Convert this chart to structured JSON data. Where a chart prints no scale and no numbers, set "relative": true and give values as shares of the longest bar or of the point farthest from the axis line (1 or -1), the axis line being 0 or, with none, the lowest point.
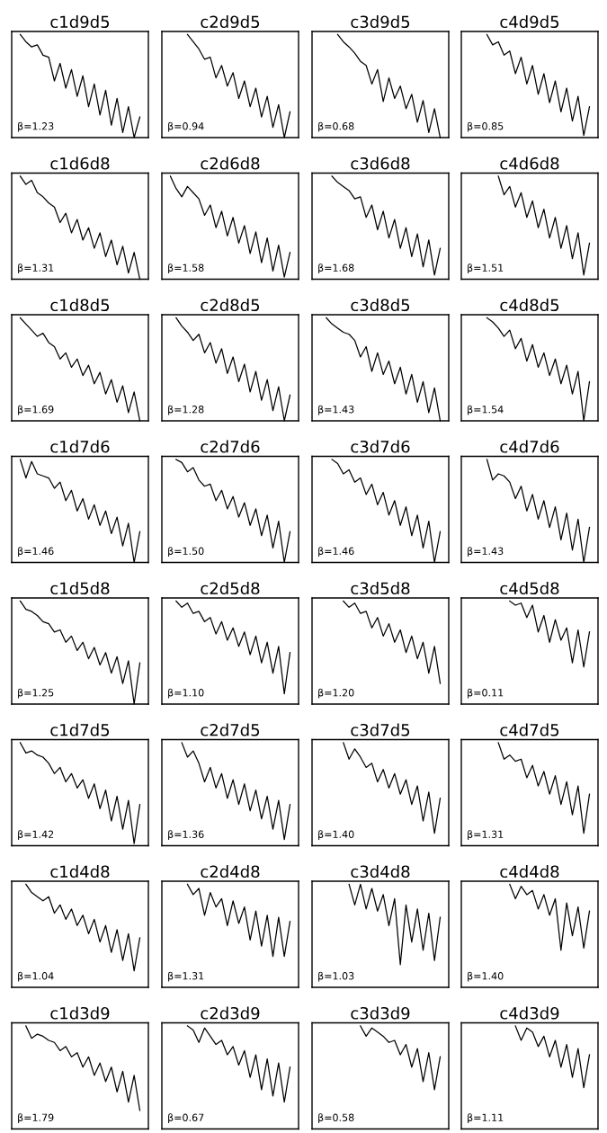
{
  "chart_data": [
    {
      "type": "line",
      "title": "c1d9d5",
      "annotations": [
        "β=1.23"
      ],
      "relative": true,
      "color": "#000000",
      "categories": [
        null,
        null,
        null,
        null,
        null,
        null,
        null,
        null,
        null,
        null,
        null,
        null,
        null,
        null,
        null,
        null,
        null,
        null,
        null,
        null,
        null,
        null,
        null,
        null
      ],
      "values": [
        null,
        1.0,
        0.93,
        0.88,
        0.9,
        0.8,
        0.78,
        0.55,
        0.72,
        0.48,
        0.66,
        0.4,
        0.6,
        0.3,
        0.52,
        0.22,
        0.46,
        0.12,
        0.38,
        0.05,
        0.3,
        0.0,
        0.2,
        null
      ]
    },
    {
      "type": "line",
      "title": "c2d9d5",
      "annotations": [
        "β=0.94"
      ],
      "relative": true,
      "color": "#000000",
      "categories": [
        null,
        null,
        null,
        null,
        null,
        null,
        null,
        null,
        null,
        null,
        null,
        null,
        null,
        null,
        null,
        null,
        null,
        null,
        null,
        null,
        null,
        null,
        null,
        null
      ],
      "values": [
        null,
        null,
        null,
        null,
        1.0,
        0.93,
        0.86,
        0.76,
        0.78,
        0.58,
        0.7,
        0.5,
        0.63,
        0.38,
        0.55,
        0.3,
        0.48,
        0.2,
        0.4,
        0.1,
        0.32,
        0.0,
        0.25,
        null
      ]
    },
    {
      "type": "line",
      "title": "c3d9d5",
      "annotations": [
        "β=0.68"
      ],
      "relative": true,
      "color": "#000000",
      "categories": [
        null,
        null,
        null,
        null,
        null,
        null,
        null,
        null,
        null,
        null,
        null,
        null,
        null,
        null,
        null,
        null,
        null,
        null,
        null,
        null,
        null,
        null,
        null,
        null
      ],
      "values": [
        null,
        null,
        null,
        null,
        1.0,
        0.93,
        0.88,
        0.82,
        0.74,
        0.7,
        0.52,
        0.66,
        0.35,
        0.58,
        0.38,
        0.5,
        0.28,
        0.42,
        0.15,
        0.36,
        0.05,
        0.28,
        0.0,
        null
      ]
    },
    {
      "type": "line",
      "title": "c4d9d5",
      "annotations": [
        "β=0.85"
      ],
      "relative": true,
      "color": "#000000",
      "categories": [
        null,
        null,
        null,
        null,
        null,
        null,
        null,
        null,
        null,
        null,
        null,
        null,
        null,
        null,
        null,
        null,
        null,
        null,
        null,
        null,
        null,
        null,
        null,
        null
      ],
      "values": [
        null,
        null,
        null,
        null,
        1.0,
        0.9,
        0.93,
        0.8,
        0.84,
        0.62,
        0.78,
        0.52,
        0.7,
        0.42,
        0.62,
        0.34,
        0.55,
        0.25,
        0.48,
        0.16,
        0.4,
        0.02,
        0.3,
        null
      ]
    },
    {
      "type": "line",
      "title": "c1d6d8",
      "annotations": [
        "β=1.31"
      ],
      "relative": true,
      "color": "#000000",
      "categories": [
        null,
        null,
        null,
        null,
        null,
        null,
        null,
        null,
        null,
        null,
        null,
        null,
        null,
        null,
        null,
        null,
        null,
        null,
        null,
        null,
        null,
        null,
        null,
        null
      ],
      "values": [
        null,
        1.0,
        0.92,
        0.96,
        0.84,
        0.8,
        0.74,
        0.7,
        0.55,
        0.64,
        0.45,
        0.58,
        0.38,
        0.5,
        0.3,
        0.45,
        0.22,
        0.38,
        0.14,
        0.32,
        0.06,
        0.26,
        0.0,
        null
      ]
    },
    {
      "type": "line",
      "title": "c2d6d8",
      "annotations": [
        "β=1.58"
      ],
      "relative": true,
      "color": "#000000",
      "categories": [
        null,
        null,
        null,
        null,
        null,
        null,
        null,
        null,
        null,
        null,
        null,
        null,
        null,
        null,
        null,
        null,
        null,
        null,
        null,
        null,
        null,
        null,
        null,
        null
      ],
      "values": [
        null,
        1.0,
        0.88,
        0.8,
        0.9,
        0.84,
        0.78,
        0.62,
        0.72,
        0.5,
        0.66,
        0.42,
        0.6,
        0.35,
        0.52,
        0.25,
        0.46,
        0.16,
        0.4,
        0.08,
        0.33,
        0.02,
        0.26,
        null
      ]
    },
    {
      "type": "line",
      "title": "c3d6d8",
      "annotations": [
        "β=1.68"
      ],
      "relative": true,
      "color": "#000000",
      "categories": [
        null,
        null,
        null,
        null,
        null,
        null,
        null,
        null,
        null,
        null,
        null,
        null,
        null,
        null,
        null,
        null,
        null,
        null,
        null,
        null,
        null,
        null,
        null,
        null
      ],
      "values": [
        null,
        null,
        null,
        1.0,
        0.94,
        0.9,
        0.86,
        0.78,
        0.8,
        0.6,
        0.72,
        0.48,
        0.66,
        0.4,
        0.58,
        0.3,
        0.5,
        0.22,
        0.44,
        0.12,
        0.38,
        0.04,
        0.3,
        null
      ]
    },
    {
      "type": "line",
      "title": "c4d6d8",
      "annotations": [
        "β=1.51"
      ],
      "relative": true,
      "color": "#000000",
      "categories": [
        null,
        null,
        null,
        null,
        null,
        null,
        null,
        null,
        null,
        null,
        null,
        null,
        null,
        null,
        null,
        null,
        null,
        null,
        null,
        null,
        null,
        null,
        null,
        null
      ],
      "values": [
        null,
        null,
        null,
        null,
        null,
        null,
        1.0,
        0.82,
        0.9,
        0.7,
        0.84,
        0.6,
        0.76,
        0.5,
        0.68,
        0.4,
        0.6,
        0.3,
        0.52,
        0.2,
        0.45,
        0.04,
        0.35,
        null
      ]
    },
    {
      "type": "line",
      "title": "c1d8d5",
      "annotations": [
        "β=1.69"
      ],
      "relative": true,
      "color": "#000000",
      "categories": [
        null,
        null,
        null,
        null,
        null,
        null,
        null,
        null,
        null,
        null,
        null,
        null,
        null,
        null,
        null,
        null,
        null,
        null,
        null,
        null,
        null,
        null,
        null,
        null
      ],
      "values": [
        null,
        1.0,
        0.94,
        0.88,
        0.82,
        0.85,
        0.76,
        0.72,
        0.6,
        0.66,
        0.52,
        0.6,
        0.44,
        0.54,
        0.36,
        0.47,
        0.26,
        0.4,
        0.18,
        0.34,
        0.08,
        0.28,
        0.0,
        null
      ]
    },
    {
      "type": "line",
      "title": "c2d8d5",
      "annotations": [
        "β=1.28"
      ],
      "relative": true,
      "color": "#000000",
      "categories": [
        null,
        null,
        null,
        null,
        null,
        null,
        null,
        null,
        null,
        null,
        null,
        null,
        null,
        null,
        null,
        null,
        null,
        null,
        null,
        null,
        null,
        null,
        null,
        null
      ],
      "values": [
        null,
        null,
        1.0,
        0.92,
        0.86,
        0.78,
        0.84,
        0.66,
        0.76,
        0.56,
        0.7,
        0.46,
        0.62,
        0.38,
        0.55,
        0.28,
        0.48,
        0.2,
        0.4,
        0.1,
        0.33,
        0.0,
        0.25,
        null
      ]
    },
    {
      "type": "line",
      "title": "c3d8d5",
      "annotations": [
        "β=1.43"
      ],
      "relative": true,
      "color": "#000000",
      "categories": [
        null,
        null,
        null,
        null,
        null,
        null,
        null,
        null,
        null,
        null,
        null,
        null,
        null,
        null,
        null,
        null,
        null,
        null,
        null,
        null,
        null,
        null,
        null,
        null
      ],
      "values": [
        null,
        null,
        1.0,
        0.94,
        0.9,
        0.86,
        0.84,
        0.78,
        0.62,
        0.72,
        0.48,
        0.66,
        0.45,
        0.58,
        0.36,
        0.52,
        0.26,
        0.45,
        0.18,
        0.38,
        0.08,
        0.32,
        0.0,
        null
      ]
    },
    {
      "type": "line",
      "title": "c4d8d5",
      "annotations": [
        "β=1.54"
      ],
      "relative": true,
      "color": "#000000",
      "categories": [
        null,
        null,
        null,
        null,
        null,
        null,
        null,
        null,
        null,
        null,
        null,
        null,
        null,
        null,
        null,
        null,
        null,
        null,
        null,
        null,
        null,
        null,
        null,
        null
      ],
      "values": [
        null,
        null,
        null,
        null,
        1.0,
        0.96,
        0.9,
        0.82,
        0.88,
        0.7,
        0.8,
        0.58,
        0.74,
        0.52,
        0.66,
        0.44,
        0.6,
        0.36,
        0.54,
        0.26,
        0.48,
        0.0,
        0.38,
        null
      ]
    },
    {
      "type": "line",
      "title": "c1d7d6",
      "annotations": [
        "β=1.46"
      ],
      "relative": true,
      "color": "#000000",
      "categories": [
        null,
        null,
        null,
        null,
        null,
        null,
        null,
        null,
        null,
        null,
        null,
        null,
        null,
        null,
        null,
        null,
        null,
        null,
        null,
        null,
        null,
        null,
        null,
        null
      ],
      "values": [
        null,
        1.0,
        0.82,
        0.98,
        0.86,
        0.84,
        0.82,
        0.72,
        0.78,
        0.6,
        0.7,
        0.5,
        0.62,
        0.42,
        0.56,
        0.36,
        0.5,
        0.28,
        0.44,
        0.16,
        0.38,
        0.0,
        0.3,
        null
      ]
    },
    {
      "type": "line",
      "title": "c2d7d6",
      "annotations": [
        "β=1.50"
      ],
      "relative": true,
      "color": "#000000",
      "categories": [
        null,
        null,
        null,
        null,
        null,
        null,
        null,
        null,
        null,
        null,
        null,
        null,
        null,
        null,
        null,
        null,
        null,
        null,
        null,
        null,
        null,
        null,
        null,
        null
      ],
      "values": [
        null,
        null,
        1.0,
        0.97,
        0.88,
        0.92,
        0.8,
        0.74,
        0.76,
        0.6,
        0.7,
        0.52,
        0.64,
        0.44,
        0.58,
        0.36,
        0.52,
        0.26,
        0.46,
        0.14,
        0.4,
        0.0,
        0.3,
        null
      ]
    },
    {
      "type": "line",
      "title": "c3d7d6",
      "annotations": [
        "β=1.46"
      ],
      "relative": true,
      "color": "#000000",
      "categories": [
        null,
        null,
        null,
        null,
        null,
        null,
        null,
        null,
        null,
        null,
        null,
        null,
        null,
        null,
        null,
        null,
        null,
        null,
        null,
        null,
        null,
        null,
        null,
        null
      ],
      "values": [
        null,
        null,
        null,
        1.0,
        0.96,
        0.86,
        0.9,
        0.78,
        0.82,
        0.66,
        0.76,
        0.56,
        0.68,
        0.46,
        0.6,
        0.36,
        0.54,
        0.26,
        0.46,
        0.14,
        0.4,
        0.0,
        0.3,
        null
      ]
    },
    {
      "type": "line",
      "title": "c4d7d6",
      "annotations": [
        "β=1.43"
      ],
      "relative": true,
      "color": "#000000",
      "categories": [
        null,
        null,
        null,
        null,
        null,
        null,
        null,
        null,
        null,
        null,
        null,
        null,
        null,
        null,
        null,
        null,
        null,
        null,
        null,
        null,
        null,
        null,
        null,
        null
      ],
      "values": [
        null,
        null,
        null,
        null,
        1.0,
        0.8,
        0.86,
        0.84,
        0.78,
        0.62,
        0.74,
        0.5,
        0.66,
        0.42,
        0.6,
        0.34,
        0.54,
        0.22,
        0.48,
        0.12,
        0.42,
        0.0,
        0.34,
        null
      ]
    },
    {
      "type": "line",
      "title": "c1d5d8",
      "annotations": [
        "β=1.25"
      ],
      "relative": true,
      "color": "#000000",
      "categories": [
        null,
        null,
        null,
        null,
        null,
        null,
        null,
        null,
        null,
        null,
        null,
        null,
        null,
        null,
        null,
        null,
        null,
        null,
        null,
        null,
        null,
        null,
        null,
        null
      ],
      "values": [
        null,
        1.0,
        0.92,
        0.9,
        0.86,
        0.8,
        0.78,
        0.7,
        0.72,
        0.6,
        0.66,
        0.52,
        0.6,
        0.44,
        0.55,
        0.38,
        0.5,
        0.3,
        0.46,
        0.2,
        0.42,
        0.0,
        0.4,
        null
      ]
    },
    {
      "type": "line",
      "title": "c2d5d8",
      "annotations": [
        "β=1.10"
      ],
      "relative": true,
      "color": "#000000",
      "categories": [
        null,
        null,
        null,
        null,
        null,
        null,
        null,
        null,
        null,
        null,
        null,
        null,
        null,
        null,
        null,
        null,
        null,
        null,
        null,
        null,
        null,
        null,
        null,
        null
      ],
      "values": [
        null,
        null,
        1.0,
        0.94,
        0.98,
        0.88,
        0.9,
        0.8,
        0.84,
        0.68,
        0.8,
        0.62,
        0.74,
        0.56,
        0.7,
        0.48,
        0.66,
        0.4,
        0.6,
        0.3,
        0.56,
        0.1,
        0.5,
        null
      ]
    },
    {
      "type": "line",
      "title": "c3d5d8",
      "annotations": [
        "β=1.20"
      ],
      "relative": true,
      "color": "#000000",
      "categories": [
        null,
        null,
        null,
        null,
        null,
        null,
        null,
        null,
        null,
        null,
        null,
        null,
        null,
        null,
        null,
        null,
        null,
        null,
        null,
        null,
        null,
        null,
        null,
        null
      ],
      "values": [
        null,
        null,
        null,
        null,
        null,
        1.0,
        0.94,
        0.98,
        0.88,
        0.9,
        0.74,
        0.84,
        0.66,
        0.78,
        0.6,
        0.72,
        0.5,
        0.66,
        0.44,
        0.6,
        0.3,
        0.56,
        0.2,
        null
      ]
    },
    {
      "type": "line",
      "title": "c4d5d8",
      "annotations": [
        "β=0.11"
      ],
      "relative": true,
      "color": "#000000",
      "categories": [
        null,
        null,
        null,
        null,
        null,
        null,
        null,
        null,
        null,
        null,
        null,
        null,
        null,
        null,
        null,
        null,
        null,
        null,
        null,
        null,
        null,
        null,
        null,
        null
      ],
      "values": [
        null,
        null,
        null,
        null,
        null,
        null,
        null,
        null,
        1.0,
        0.96,
        0.98,
        0.84,
        0.96,
        0.7,
        0.86,
        0.6,
        0.82,
        0.62,
        0.74,
        0.4,
        0.72,
        0.36,
        0.7,
        null
      ]
    },
    {
      "type": "line",
      "title": "c1d7d5",
      "annotations": [
        "β=1.42"
      ],
      "relative": true,
      "color": "#000000",
      "categories": [
        null,
        null,
        null,
        null,
        null,
        null,
        null,
        null,
        null,
        null,
        null,
        null,
        null,
        null,
        null,
        null,
        null,
        null,
        null,
        null,
        null,
        null,
        null,
        null
      ],
      "values": [
        null,
        1.0,
        0.9,
        0.92,
        0.88,
        0.86,
        0.8,
        0.7,
        0.76,
        0.62,
        0.7,
        0.56,
        0.64,
        0.46,
        0.6,
        0.36,
        0.54,
        0.24,
        0.48,
        0.16,
        0.44,
        0.02,
        0.4,
        null
      ]
    },
    {
      "type": "line",
      "title": "c2d7d5",
      "annotations": [
        "β=1.36"
      ],
      "relative": true,
      "color": "#000000",
      "categories": [
        null,
        null,
        null,
        null,
        null,
        null,
        null,
        null,
        null,
        null,
        null,
        null,
        null,
        null,
        null,
        null,
        null,
        null,
        null,
        null,
        null,
        null,
        null,
        null
      ],
      "values": [
        null,
        null,
        null,
        1.0,
        0.86,
        0.92,
        0.8,
        0.62,
        0.76,
        0.56,
        0.7,
        0.46,
        0.64,
        0.4,
        0.6,
        0.34,
        0.54,
        0.26,
        0.48,
        0.16,
        0.44,
        0.06,
        0.4,
        null
      ]
    },
    {
      "type": "line",
      "title": "c3d7d5",
      "annotations": [
        "β=1.40"
      ],
      "relative": true,
      "color": "#000000",
      "categories": [
        null,
        null,
        null,
        null,
        null,
        null,
        null,
        null,
        null,
        null,
        null,
        null,
        null,
        null,
        null,
        null,
        null,
        null,
        null,
        null,
        null,
        null,
        null,
        null
      ],
      "values": [
        null,
        null,
        null,
        null,
        null,
        1.0,
        0.84,
        0.94,
        0.86,
        0.76,
        0.8,
        0.62,
        0.74,
        0.56,
        0.7,
        0.5,
        0.64,
        0.4,
        0.58,
        0.24,
        0.52,
        0.12,
        0.46,
        null
      ]
    },
    {
      "type": "line",
      "title": "c4d7d5",
      "annotations": [
        "β=1.31"
      ],
      "relative": true,
      "color": "#000000",
      "categories": [
        null,
        null,
        null,
        null,
        null,
        null,
        null,
        null,
        null,
        null,
        null,
        null,
        null,
        null,
        null,
        null,
        null,
        null,
        null,
        null,
        null,
        null,
        null,
        null
      ],
      "values": [
        null,
        null,
        null,
        null,
        null,
        null,
        1.0,
        0.84,
        0.88,
        0.82,
        0.84,
        0.66,
        0.78,
        0.58,
        0.72,
        0.5,
        0.68,
        0.4,
        0.62,
        0.3,
        0.58,
        0.12,
        0.5,
        null
      ]
    },
    {
      "type": "line",
      "title": "c1d4d8",
      "annotations": [
        "β=1.04"
      ],
      "relative": true,
      "color": "#000000",
      "categories": [
        null,
        null,
        null,
        null,
        null,
        null,
        null,
        null,
        null,
        null,
        null,
        null,
        null,
        null,
        null,
        null,
        null,
        null,
        null,
        null,
        null,
        null,
        null,
        null
      ],
      "values": [
        null,
        null,
        1.0,
        0.92,
        0.88,
        0.84,
        0.88,
        0.72,
        0.8,
        0.66,
        0.76,
        0.6,
        0.7,
        0.52,
        0.66,
        0.44,
        0.6,
        0.34,
        0.56,
        0.26,
        0.52,
        0.16,
        0.48,
        null
      ]
    },
    {
      "type": "line",
      "title": "c2d4d8",
      "annotations": [
        "β=1.31"
      ],
      "relative": true,
      "color": "#000000",
      "categories": [
        null,
        null,
        null,
        null,
        null,
        null,
        null,
        null,
        null,
        null,
        null,
        null,
        null,
        null,
        null,
        null,
        null,
        null,
        null,
        null,
        null,
        null,
        null,
        null
      ],
      "values": [
        null,
        null,
        null,
        null,
        1.0,
        0.9,
        0.96,
        0.7,
        0.92,
        0.78,
        0.86,
        0.6,
        0.84,
        0.62,
        0.78,
        0.46,
        0.74,
        0.4,
        0.7,
        0.3,
        0.68,
        0.3,
        0.64,
        null
      ]
    },
    {
      "type": "line",
      "title": "c3d4d8",
      "annotations": [
        "β=1.03"
      ],
      "relative": true,
      "color": "#000000",
      "categories": [
        null,
        null,
        null,
        null,
        null,
        null,
        null,
        null,
        null,
        null,
        null,
        null,
        null,
        null,
        null,
        null,
        null,
        null,
        null,
        null,
        null,
        null,
        null,
        null
      ],
      "values": [
        null,
        null,
        null,
        null,
        null,
        null,
        1.0,
        0.8,
        1.0,
        0.76,
        0.96,
        0.74,
        0.9,
        0.6,
        0.86,
        0.22,
        0.8,
        0.44,
        0.76,
        0.36,
        0.72,
        0.26,
        0.68,
        null
      ]
    },
    {
      "type": "line",
      "title": "c4d4d8",
      "annotations": [
        "β=1.40"
      ],
      "relative": true,
      "color": "#000000",
      "categories": [
        null,
        null,
        null,
        null,
        null,
        null,
        null,
        null,
        null,
        null,
        null,
        null,
        null,
        null,
        null,
        null,
        null,
        null,
        null,
        null,
        null,
        null,
        null,
        null
      ],
      "values": [
        null,
        null,
        null,
        null,
        null,
        null,
        null,
        null,
        1.0,
        0.86,
        0.98,
        0.9,
        0.94,
        0.76,
        0.9,
        0.7,
        0.86,
        0.36,
        0.82,
        0.5,
        0.78,
        0.38,
        0.74,
        null
      ]
    },
    {
      "type": "line",
      "title": "c1d3d9",
      "annotations": [
        "β=1.79"
      ],
      "relative": true,
      "color": "#000000",
      "categories": [
        null,
        null,
        null,
        null,
        null,
        null,
        null,
        null,
        null,
        null,
        null,
        null,
        null,
        null,
        null,
        null,
        null,
        null,
        null,
        null,
        null,
        null,
        null,
        null
      ],
      "values": [
        null,
        null,
        1.0,
        0.88,
        0.92,
        0.9,
        0.86,
        0.84,
        0.76,
        0.8,
        0.7,
        0.74,
        0.6,
        0.7,
        0.52,
        0.64,
        0.46,
        0.6,
        0.36,
        0.56,
        0.26,
        0.52,
        0.18,
        null
      ]
    },
    {
      "type": "line",
      "title": "c2d3d9",
      "annotations": [
        "β=0.67"
      ],
      "relative": true,
      "color": "#000000",
      "categories": [
        null,
        null,
        null,
        null,
        null,
        null,
        null,
        null,
        null,
        null,
        null,
        null,
        null,
        null,
        null,
        null,
        null,
        null,
        null,
        null,
        null,
        null,
        null,
        null
      ],
      "values": [
        null,
        null,
        null,
        null,
        1.0,
        0.96,
        0.84,
        0.98,
        0.9,
        0.82,
        0.86,
        0.72,
        0.8,
        0.62,
        0.76,
        0.5,
        0.72,
        0.38,
        0.68,
        0.32,
        0.64,
        0.26,
        0.6,
        null
      ]
    },
    {
      "type": "line",
      "title": "c3d3d9",
      "annotations": [
        "β=0.58"
      ],
      "relative": true,
      "color": "#000000",
      "categories": [
        null,
        null,
        null,
        null,
        null,
        null,
        null,
        null,
        null,
        null,
        null,
        null,
        null,
        null,
        null,
        null,
        null,
        null,
        null,
        null,
        null,
        null,
        null,
        null
      ],
      "values": [
        null,
        null,
        null,
        null,
        null,
        null,
        null,
        null,
        1.0,
        0.9,
        0.98,
        0.94,
        0.9,
        0.84,
        0.86,
        0.72,
        0.82,
        0.6,
        0.78,
        0.46,
        0.74,
        0.38,
        0.7,
        null
      ]
    },
    {
      "type": "line",
      "title": "c4d3d9",
      "annotations": [
        "β=1.11"
      ],
      "relative": true,
      "color": "#000000",
      "categories": [
        null,
        null,
        null,
        null,
        null,
        null,
        null,
        null,
        null,
        null,
        null,
        null,
        null,
        null,
        null,
        null,
        null,
        null,
        null,
        null,
        null,
        null,
        null,
        null
      ],
      "values": [
        null,
        null,
        null,
        null,
        null,
        null,
        null,
        null,
        null,
        1.0,
        0.86,
        0.98,
        0.94,
        0.8,
        0.9,
        0.7,
        0.86,
        0.6,
        0.82,
        0.5,
        0.78,
        0.4,
        0.72,
        null
      ]
    }
  ]
}
